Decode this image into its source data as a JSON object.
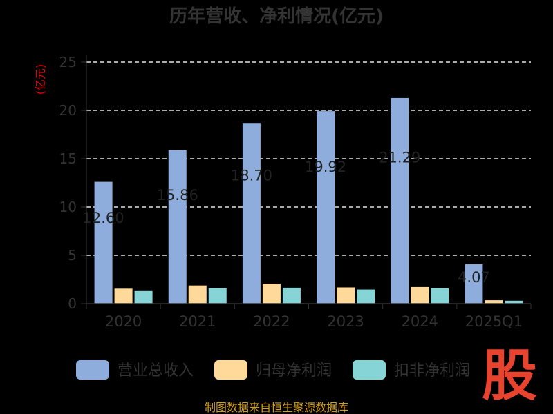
{
  "title": "历年营收、净利情况(亿元)",
  "unit_label": "(亿元)",
  "source": "制图数据来自恒生聚源数据库",
  "logo_text": "股",
  "colors": {
    "revenue": "#8EADDC",
    "net_profit": "#FFD99A",
    "deducted_net_profit": "#86D4D6",
    "background": "#000000",
    "grid": "#ffffff",
    "source_text": "#d4a017",
    "logo": "#e8432e"
  },
  "chart_data": {
    "type": "bar",
    "categories": [
      "2020",
      "2021",
      "2022",
      "2023",
      "2024",
      "2025Q1"
    ],
    "series": [
      {
        "name": "营业总收入",
        "values": [
          12.6,
          15.86,
          18.7,
          19.92,
          21.29,
          4.07
        ]
      },
      {
        "name": "归母净利润",
        "values": [
          1.55,
          1.88,
          2.07,
          1.68,
          1.72,
          0.35
        ]
      },
      {
        "name": "扣非净利润",
        "values": [
          1.3,
          1.6,
          1.65,
          1.46,
          1.6,
          0.3
        ]
      }
    ],
    "data_labels": [
      "12.60",
      "15.86",
      "18.70",
      "19.92",
      "21.29",
      "4.07"
    ],
    "ylim": [
      0,
      25
    ],
    "yticks": [
      "0",
      "5",
      "10",
      "15",
      "20",
      "25"
    ],
    "grid": true,
    "legend_position": "bottom"
  }
}
